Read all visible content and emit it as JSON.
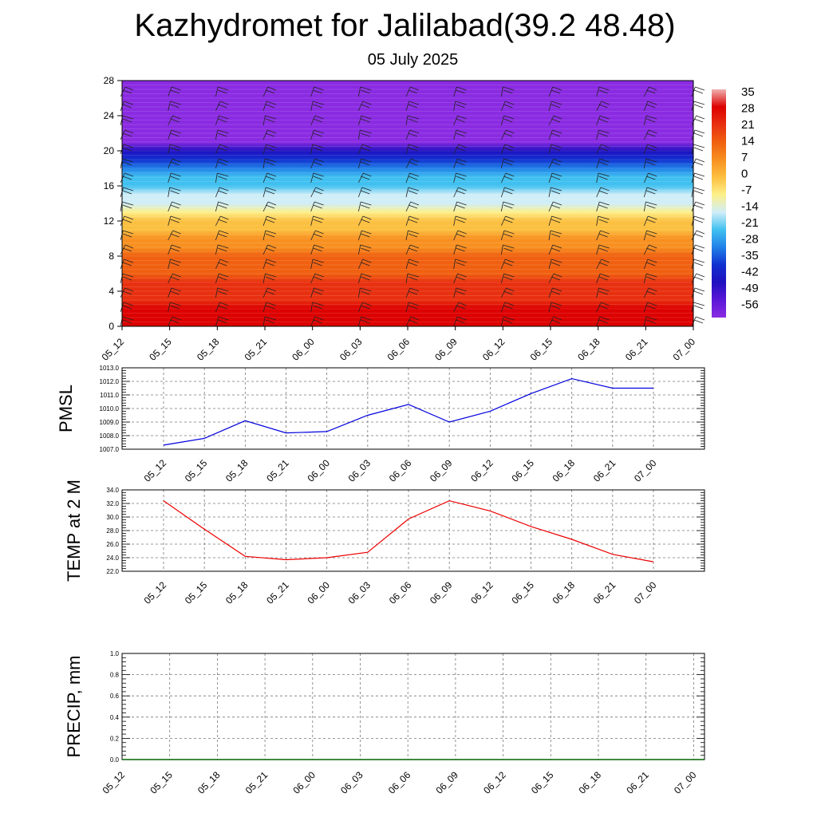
{
  "title": "Kazhydromet for Jalilabad(39.2 48.48)",
  "subtitle": "05 July 2025",
  "colors": {
    "pmsl_line": "#0000dd",
    "temp_line": "#ee0000",
    "precip_line": "#006400",
    "grid": "#777777"
  },
  "chart_data": [
    {
      "type": "heatmap",
      "name": "vertical-cross-section",
      "x_tick_labels": [
        "05_12",
        "05_15",
        "05_18",
        "05_21",
        "06_00",
        "06_03",
        "06_06",
        "06_09",
        "06_12",
        "06_15",
        "06_18",
        "06_21",
        "07_00"
      ],
      "ylim": [
        0,
        28
      ],
      "y_ticks": [
        0,
        4,
        8,
        12,
        16,
        20,
        24,
        28
      ],
      "colorbar": {
        "labels": [
          "35",
          "28",
          "21",
          "14",
          "7",
          "0",
          "-7",
          "-14",
          "-21",
          "-28",
          "-35",
          "-42",
          "-49",
          "-56"
        ],
        "colors": [
          "#f0b0b0",
          "#dd0000",
          "#e83010",
          "#f06010",
          "#f89020",
          "#fcc040",
          "#fdf08a",
          "#d0eef8",
          "#40c0f0",
          "#2080e8",
          "#1030d0",
          "#2010c0",
          "#5a18d8",
          "#8a2be2"
        ]
      },
      "temperature_profile": [
        {
          "height": 0,
          "value": 30
        },
        {
          "height": 5,
          "value": 20
        },
        {
          "height": 8,
          "value": 12
        },
        {
          "height": 11,
          "value": 3
        },
        {
          "height": 14,
          "value": -12
        },
        {
          "height": 17,
          "value": -24
        },
        {
          "height": 20,
          "value": -42
        },
        {
          "height": 21,
          "value": -56
        },
        {
          "height": 24,
          "value": -58
        },
        {
          "height": 28,
          "value": -58
        }
      ]
    },
    {
      "type": "line",
      "name": "PMSL",
      "ylabel": "PMSL",
      "ylim": [
        1007.0,
        1013.0
      ],
      "y_tick_labels": [
        "1007.0",
        "1008.0",
        "1009.0",
        "1010.0",
        "1011.0",
        "1012.0",
        "1013.0"
      ],
      "x_tick_labels": [
        "05_12",
        "05_15",
        "05_18",
        "05_21",
        "06_00",
        "06_03",
        "06_06",
        "06_09",
        "06_12",
        "06_15",
        "06_18",
        "06_21",
        "07_00"
      ],
      "values": [
        1007.3,
        1007.8,
        1009.1,
        1008.2,
        1008.3,
        1009.5,
        1010.3,
        1009.0,
        1009.8,
        1011.1,
        1012.2,
        1011.5,
        1011.5
      ]
    },
    {
      "type": "line",
      "name": "TEMP at 2 M",
      "ylabel": "TEMP at 2 M",
      "ylim": [
        22.0,
        34.0
      ],
      "y_tick_labels": [
        "22.0",
        "24.0",
        "26.0",
        "28.0",
        "30.0",
        "32.0",
        "34.0"
      ],
      "x_tick_labels": [
        "05_12",
        "05_15",
        "05_18",
        "05_21",
        "06_00",
        "06_03",
        "06_06",
        "06_09",
        "06_12",
        "06_15",
        "06_18",
        "06_21",
        "07_00"
      ],
      "values": [
        32.4,
        28.2,
        24.2,
        23.7,
        24.0,
        24.8,
        29.7,
        32.4,
        30.9,
        28.6,
        26.7,
        24.5,
        23.4
      ]
    },
    {
      "type": "line",
      "name": "PRECIP, mm",
      "ylabel": "PRECIP, mm",
      "ylim": [
        0.0,
        1.0
      ],
      "y_tick_labels": [
        "0.0",
        "0.2",
        "0.4",
        "0.6",
        "0.8",
        "1.0"
      ],
      "x_tick_labels": [
        "05_12",
        "05_15",
        "05_18",
        "05_21",
        "06_00",
        "06_03",
        "06_06",
        "06_09",
        "06_12",
        "06_15",
        "06_18",
        "06_21",
        "07_00"
      ],
      "values": [
        0,
        0,
        0,
        0,
        0,
        0,
        0,
        0,
        0,
        0,
        0,
        0,
        0
      ]
    }
  ]
}
